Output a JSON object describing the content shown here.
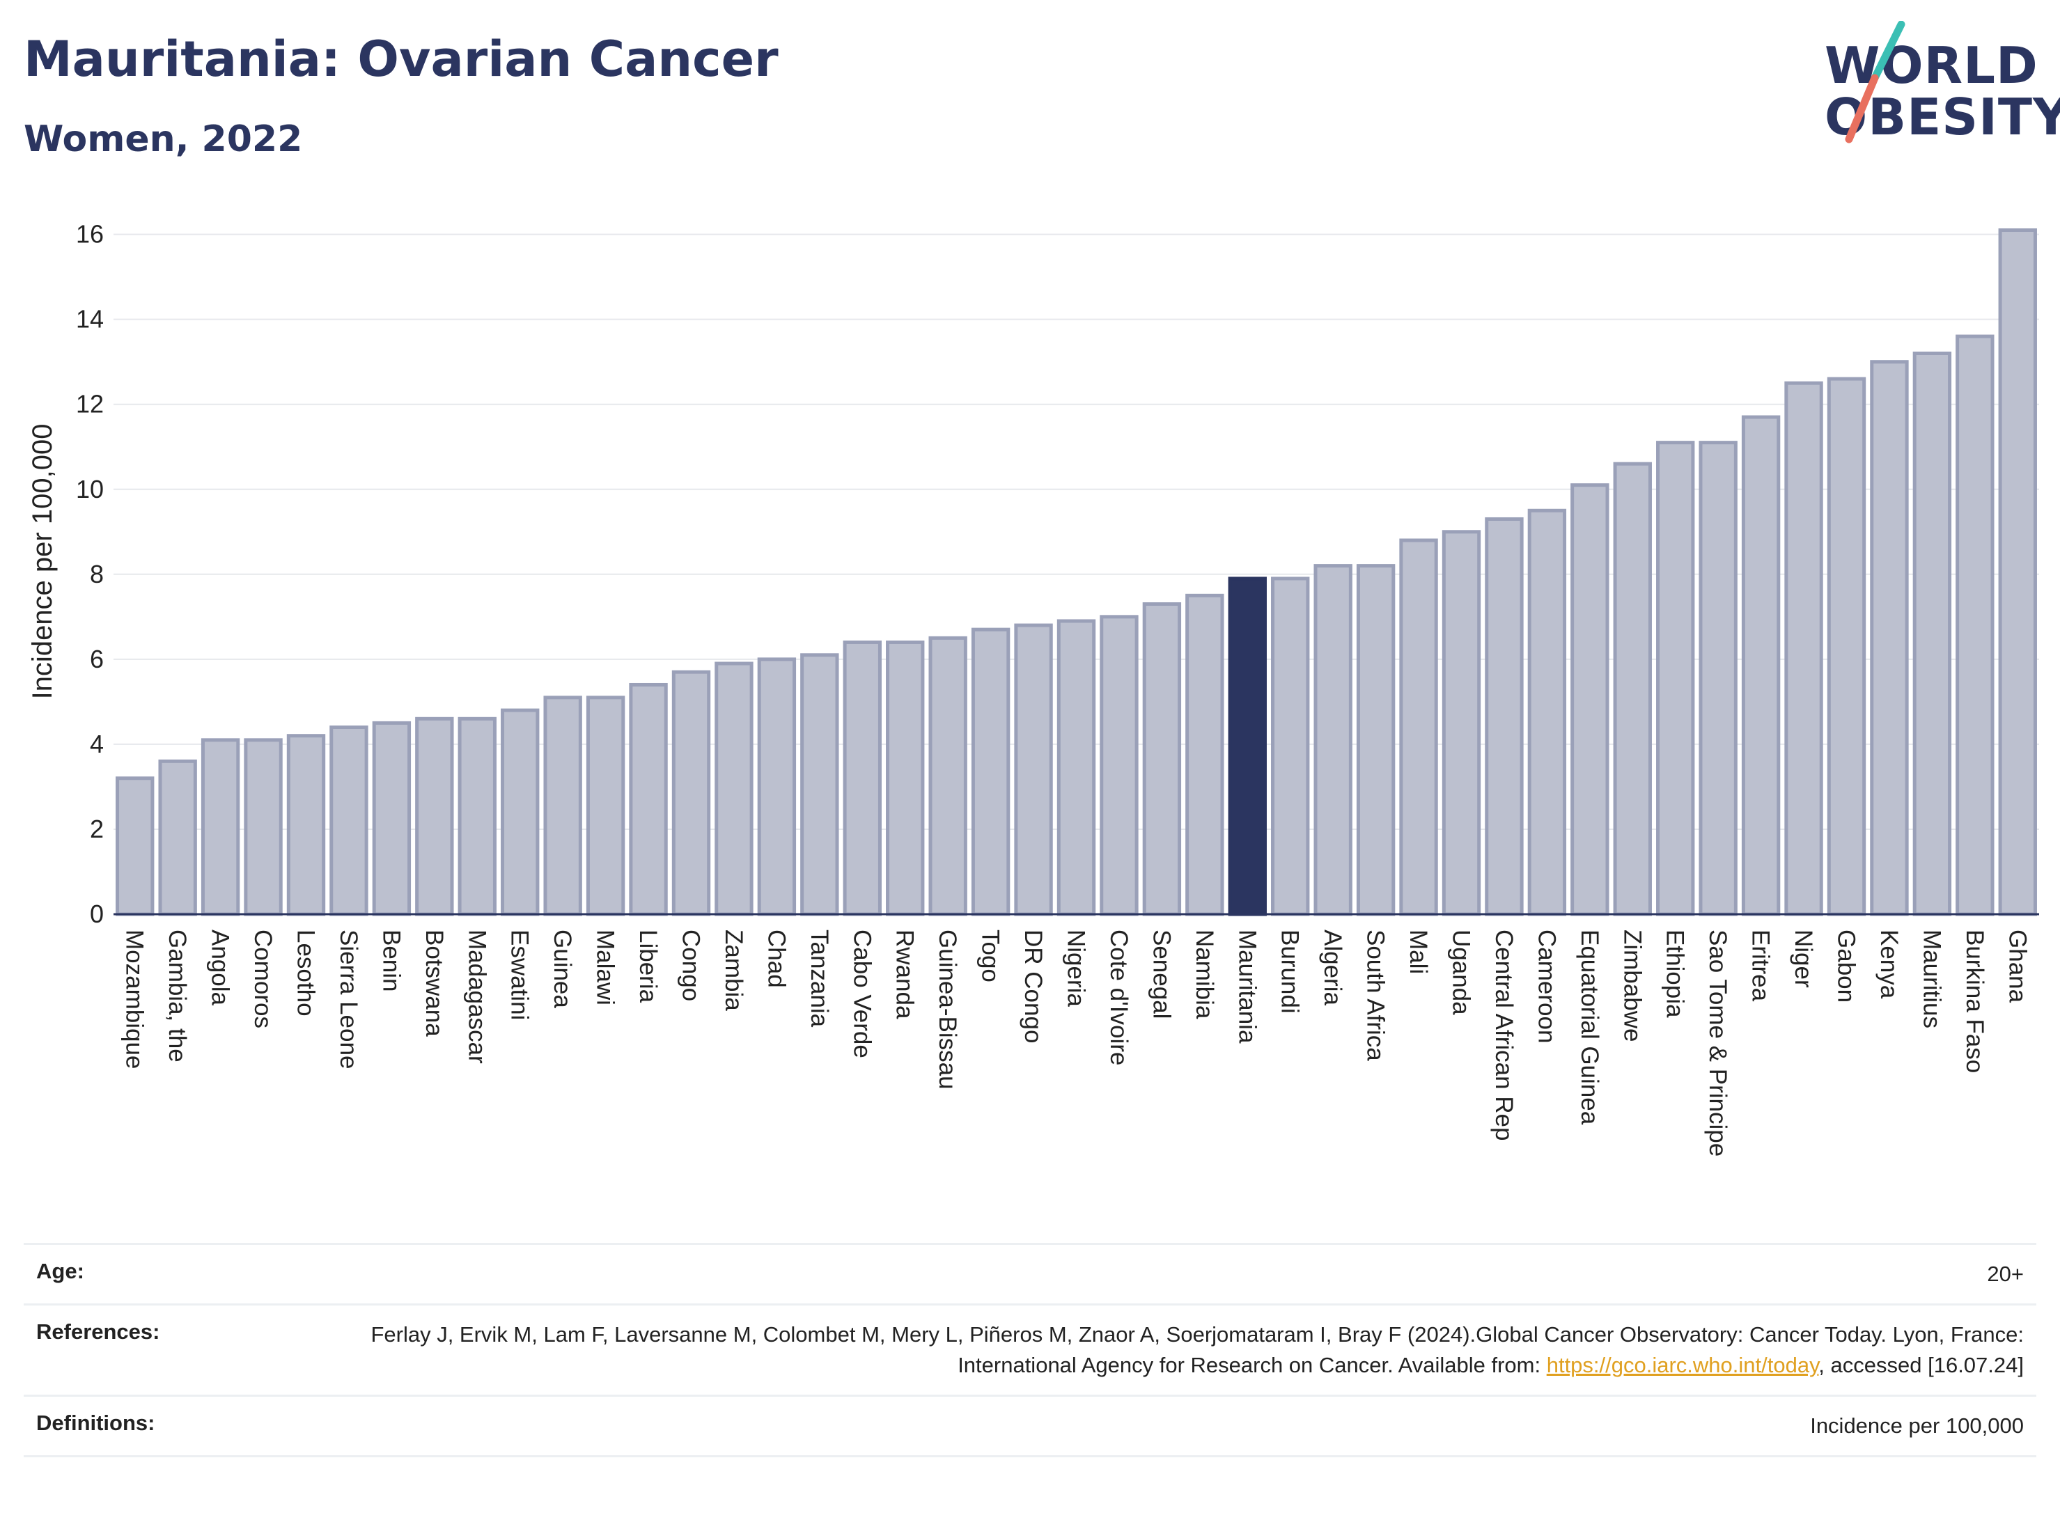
{
  "header": {
    "title": "Mauritania: Ovarian Cancer",
    "subtitle": "Women, 2022"
  },
  "logo": {
    "line1": "WORLD",
    "line2": "OBESITY",
    "accent_teal": "#3bbfb4",
    "accent_coral": "#e8705f"
  },
  "colors": {
    "bar_default": "#bcc0cf",
    "bar_border": "#9aa0b8",
    "bar_highlight": "#2b3560",
    "text_dark": "#2b3560"
  },
  "chart_data": {
    "type": "bar",
    "ylabel": "Incidence per 100,000",
    "xlabel": "",
    "ylim": [
      0,
      16.6
    ],
    "yticks": [
      0,
      2,
      4,
      6,
      8,
      10,
      12,
      14,
      16
    ],
    "grid": true,
    "highlight": "Mauritania",
    "categories": [
      "Mozambique",
      "Gambia, the",
      "Angola",
      "Comoros",
      "Lesotho",
      "Sierra Leone",
      "Benin",
      "Botswana",
      "Madagascar",
      "Eswatini",
      "Guinea",
      "Malawi",
      "Liberia",
      "Congo",
      "Zambia",
      "Chad",
      "Tanzania",
      "Cabo Verde",
      "Rwanda",
      "Guinea-Bissau",
      "Togo",
      "DR Congo",
      "Nigeria",
      "Cote d'Ivoire",
      "Senegal",
      "Namibia",
      "Mauritania",
      "Burundi",
      "Algeria",
      "South Africa",
      "Mali",
      "Uganda",
      "Central African Rep",
      "Cameroon",
      "Equatorial Guinea",
      "Zimbabwe",
      "Ethiopia",
      "Sao Tome & Principe",
      "Eritrea",
      "Niger",
      "Gabon",
      "Kenya",
      "Mauritius",
      "Burkina Faso",
      "Ghana"
    ],
    "values": [
      3.2,
      3.6,
      4.1,
      4.1,
      4.2,
      4.4,
      4.5,
      4.6,
      4.6,
      4.8,
      5.1,
      5.1,
      5.4,
      5.7,
      5.9,
      6.0,
      6.1,
      6.4,
      6.4,
      6.5,
      6.7,
      6.8,
      6.9,
      7.0,
      7.3,
      7.5,
      7.9,
      7.9,
      8.2,
      8.2,
      8.8,
      9.0,
      9.3,
      9.5,
      10.1,
      10.6,
      11.1,
      11.1,
      11.7,
      12.5,
      12.6,
      13.0,
      13.2,
      13.6,
      16.1
    ]
  },
  "footer": {
    "age_label": "Age:",
    "age_value": "20+",
    "references_label": "References:",
    "references_text_1": "Ferlay J, Ervik M, Lam F, Laversanne M, Colombet M, Mery L, Piñeros M, Znaor A, Soerjomataram I, Bray F (2024).Global Cancer Observatory: Cancer Today. Lyon, France: International Agency for Research on Cancer. Available from: ",
    "references_link": "https://gco.iarc.who.int/today",
    "references_text_2": ", accessed [16.07.24]",
    "definitions_label": "Definitions:",
    "definitions_value": "Incidence per 100,000"
  }
}
